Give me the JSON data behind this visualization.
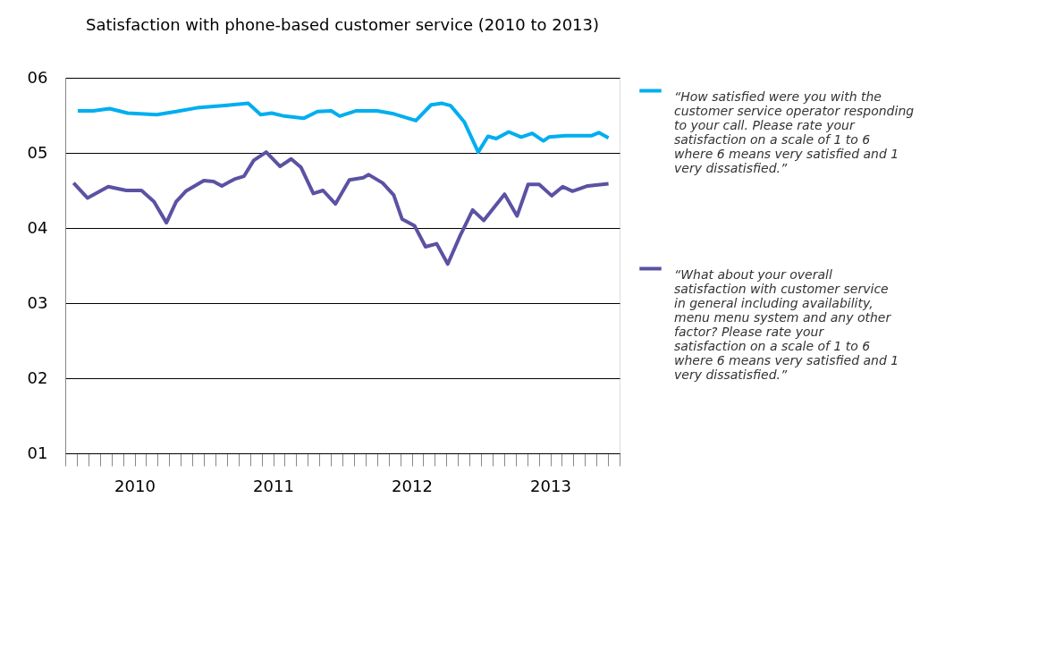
{
  "chart_data": {
    "type": "line",
    "title": "Satisfaction with phone-based customer service (2010 to 2013)",
    "series": [
      {
        "name": "“How satisfied were you with the customer service operator responding to your call. Please rate your satisfaction on a scale of 1 to 6 where 6 means very satisfied and 1 very dissatisfied.”",
        "color": "#00aeef",
        "x": [
          2010.09,
          2010.2,
          2010.32,
          2010.45,
          2010.66,
          2010.8,
          2010.95,
          2011.15,
          2011.32,
          2011.41,
          2011.49,
          2011.58,
          2011.72,
          2011.82,
          2011.92,
          2011.98,
          2012.1,
          2012.25,
          2012.37,
          2012.53,
          2012.64,
          2012.72,
          2012.78,
          2012.88,
          2012.98,
          2013.05,
          2013.11,
          2013.2,
          2013.29,
          2013.37,
          2013.45,
          2013.49,
          2013.61,
          2013.8,
          2013.85,
          2013.92
        ],
        "values": [
          5.56,
          5.56,
          5.59,
          5.53,
          5.51,
          5.55,
          5.6,
          5.63,
          5.66,
          5.51,
          5.53,
          5.49,
          5.46,
          5.55,
          5.56,
          5.49,
          5.56,
          5.56,
          5.52,
          5.43,
          5.64,
          5.66,
          5.63,
          5.41,
          5.01,
          5.22,
          5.19,
          5.28,
          5.21,
          5.26,
          5.16,
          5.21,
          5.23,
          5.23,
          5.27,
          5.2
        ]
      },
      {
        "name": "“What about your overall satisfaction with customer service in general including availability, menu menu system and any other factor? Please rate your satisfaction on a scale of 1 to 6 where 6 means very satisfied and 1 very dissatisfied.”",
        "color": "#5b52a3",
        "x": [
          2010.06,
          2010.16,
          2010.31,
          2010.44,
          2010.55,
          2010.64,
          2010.73,
          2010.8,
          2010.87,
          2011.0,
          2011.07,
          2011.13,
          2011.22,
          2011.29,
          2011.36,
          2011.45,
          2011.55,
          2011.63,
          2011.7,
          2011.79,
          2011.86,
          2011.95,
          2012.05,
          2012.15,
          2012.19,
          2012.29,
          2012.37,
          2012.43,
          2012.52,
          2012.6,
          2012.68,
          2012.76,
          2012.85,
          2012.94,
          2013.02,
          2013.17,
          2013.26,
          2013.34,
          2013.42,
          2013.51,
          2013.59,
          2013.66,
          2013.77,
          2013.92
        ],
        "values": [
          4.6,
          4.4,
          4.55,
          4.5,
          4.5,
          4.35,
          4.07,
          4.35,
          4.49,
          4.63,
          4.62,
          4.56,
          4.65,
          4.69,
          4.9,
          5.01,
          4.82,
          4.92,
          4.81,
          4.46,
          4.5,
          4.32,
          4.64,
          4.67,
          4.71,
          4.6,
          4.44,
          4.12,
          4.03,
          3.75,
          3.79,
          3.52,
          3.9,
          4.24,
          4.1,
          4.45,
          4.16,
          4.58,
          4.58,
          4.43,
          4.55,
          4.49,
          4.56,
          4.59
        ]
      }
    ],
    "xlim": [
      2010,
      2014
    ],
    "xticks": [
      {
        "value": 2010.5,
        "label": "2010"
      },
      {
        "value": 2011.5,
        "label": "2011"
      },
      {
        "value": 2012.5,
        "label": "2012"
      },
      {
        "value": 2013.5,
        "label": "2013"
      },
      {
        "value": 2010,
        "label": null
      },
      {
        "value": 2010.0833,
        "label": null
      },
      {
        "value": 2010.1667,
        "label": null
      },
      {
        "value": 2010.25,
        "label": null
      },
      {
        "value": 2010.3333,
        "label": null
      },
      {
        "value": 2010.4167,
        "label": null
      },
      {
        "value": 2010.5833,
        "label": null
      },
      {
        "value": 2010.6667,
        "label": null
      },
      {
        "value": 2010.75,
        "label": null
      },
      {
        "value": 2010.8333,
        "label": null
      },
      {
        "value": 2010.9167,
        "label": null
      },
      {
        "value": 2011,
        "label": null
      },
      {
        "value": 2011.0833,
        "label": null
      },
      {
        "value": 2011.1667,
        "label": null
      },
      {
        "value": 2011.25,
        "label": null
      },
      {
        "value": 2011.3333,
        "label": null
      },
      {
        "value": 2011.4167,
        "label": null
      },
      {
        "value": 2011.5833,
        "label": null
      },
      {
        "value": 2011.6667,
        "label": null
      },
      {
        "value": 2011.75,
        "label": null
      },
      {
        "value": 2011.8333,
        "label": null
      },
      {
        "value": 2011.9167,
        "label": null
      },
      {
        "value": 2012,
        "label": null
      },
      {
        "value": 2012.0833,
        "label": null
      },
      {
        "value": 2012.1667,
        "label": null
      },
      {
        "value": 2012.25,
        "label": null
      },
      {
        "value": 2012.3333,
        "label": null
      },
      {
        "value": 2012.4167,
        "label": null
      },
      {
        "value": 2012.5833,
        "label": null
      },
      {
        "value": 2012.6667,
        "label": null
      },
      {
        "value": 2012.75,
        "label": null
      },
      {
        "value": 2012.8333,
        "label": null
      },
      {
        "value": 2012.9167,
        "label": null
      },
      {
        "value": 2013,
        "label": null
      },
      {
        "value": 2013.0833,
        "label": null
      },
      {
        "value": 2013.1667,
        "label": null
      },
      {
        "value": 2013.25,
        "label": null
      },
      {
        "value": 2013.3333,
        "label": null
      },
      {
        "value": 2013.4167,
        "label": null
      },
      {
        "value": 2013.5833,
        "label": null
      },
      {
        "value": 2013.6667,
        "label": null
      },
      {
        "value": 2013.75,
        "label": null
      },
      {
        "value": 2013.8333,
        "label": null
      },
      {
        "value": 2013.9167,
        "label": null
      },
      {
        "value": 2014,
        "label": null
      }
    ],
    "ylim": [
      1,
      6
    ],
    "yticks": [
      {
        "value": 1,
        "label": "01"
      },
      {
        "value": 2,
        "label": "02"
      },
      {
        "value": 3,
        "label": "03"
      },
      {
        "value": 4,
        "label": "04"
      },
      {
        "value": 5,
        "label": "05"
      },
      {
        "value": 6,
        "label": "06"
      }
    ],
    "grid": "y",
    "legend": "right",
    "marker": "none",
    "line_style": "solid"
  }
}
